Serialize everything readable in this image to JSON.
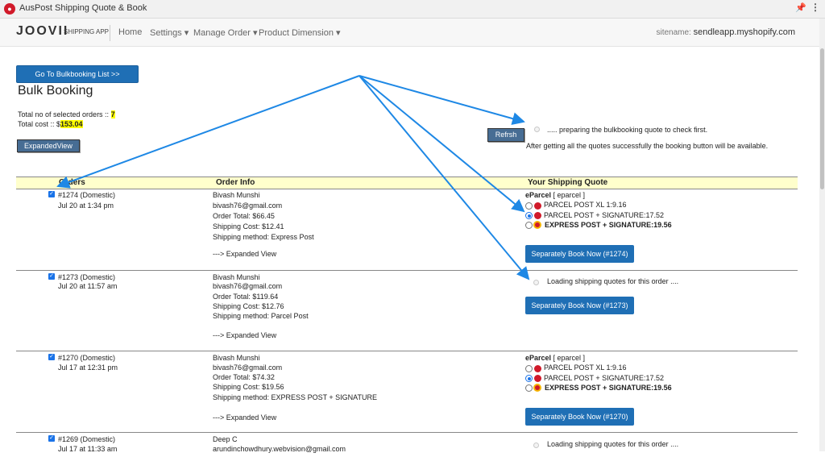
{
  "window": {
    "title": "AusPost Shipping Quote & Book"
  },
  "nav": {
    "logo": "JOOVII",
    "app_label": "SHIPPING APP",
    "items": [
      "Home",
      "Settings ▾",
      "Manage Order ▾",
      "Product Dimension ▾"
    ],
    "sitename_label": "sitename:",
    "sitename_value": "sendleapp.myshopify.com"
  },
  "page": {
    "bulk_list_button": "Go To Bulkbooking List >>",
    "title": "Bulk Booking",
    "total_orders_label": "Total no of selected orders  ::",
    "total_orders_value": "7",
    "total_cost_label": "Total cost :: $",
    "total_cost_value": "153.04",
    "expanded_view_button": "ExpandedView",
    "refresh_button": "Refrsh",
    "preparing_text": "..... preparing the bulkbooking quote to check first.",
    "after_text": "After getting all the quotes successfully the booking button will be available."
  },
  "table": {
    "headers": [
      "Orders",
      "Order Info",
      "Your Shipping Quote"
    ],
    "rows": [
      {
        "order": "#1274 (Domestic)",
        "date": "Jul 20 at  1:34 pm",
        "name": "Bivash Munshi",
        "email": "bivash76@gmail.com",
        "total": "Order Total: $66.45",
        "shipping_cost": "Shipping Cost: $12.41",
        "method": "Shipping method: Express Post",
        "expanded": "---> Expanded View",
        "quote_header": "eParcel",
        "quote_code": " [ eparcel ]",
        "options": [
          "PARCEL POST XL 1:9.16",
          "PARCEL POST + SIGNATURE:17.52",
          "EXPRESS POST + SIGNATURE:19.56"
        ],
        "selected": 1,
        "loading": "",
        "book_button": "Separately Book Now (#1274)"
      },
      {
        "order": "#1273 (Domestic)",
        "date": "Jul 20 at  11:57 am",
        "name": "Bivash Munshi",
        "email": "bivash76@gmail.com",
        "total": "Order Total: $119.64",
        "shipping_cost": "Shipping Cost: $12.76",
        "method": "Shipping method: Parcel Post",
        "expanded": "---> Expanded View",
        "quote_header": "",
        "quote_code": "",
        "options": [],
        "selected": -1,
        "loading": "Loading shipping quotes for this order ....",
        "book_button": "Separately Book Now (#1273)"
      },
      {
        "order": "#1270 (Domestic)",
        "date": "Jul 17 at  12:31 pm",
        "name": "Bivash Munshi",
        "email": "bivash76@gmail.com",
        "total": "Order Total: $74.32",
        "shipping_cost": "Shipping Cost: $19.56",
        "method": "Shipping method: EXPRESS POST + SIGNATURE",
        "expanded": "---> Expanded View",
        "quote_header": "eParcel",
        "quote_code": " [ eparcel ]",
        "options": [
          "PARCEL POST XL 1:9.16",
          "PARCEL POST + SIGNATURE:17.52",
          "EXPRESS POST + SIGNATURE:19.56"
        ],
        "selected": 1,
        "loading": "",
        "book_button": "Separately Book Now (#1270)"
      },
      {
        "order": "#1269 (Domestic)",
        "date": "Jul 17 at  11:33 am",
        "name": "Deep C",
        "email": "arundinchowdhury.webvision@gmail.com",
        "loading": "Loading shipping quotes for this order ...."
      }
    ]
  }
}
